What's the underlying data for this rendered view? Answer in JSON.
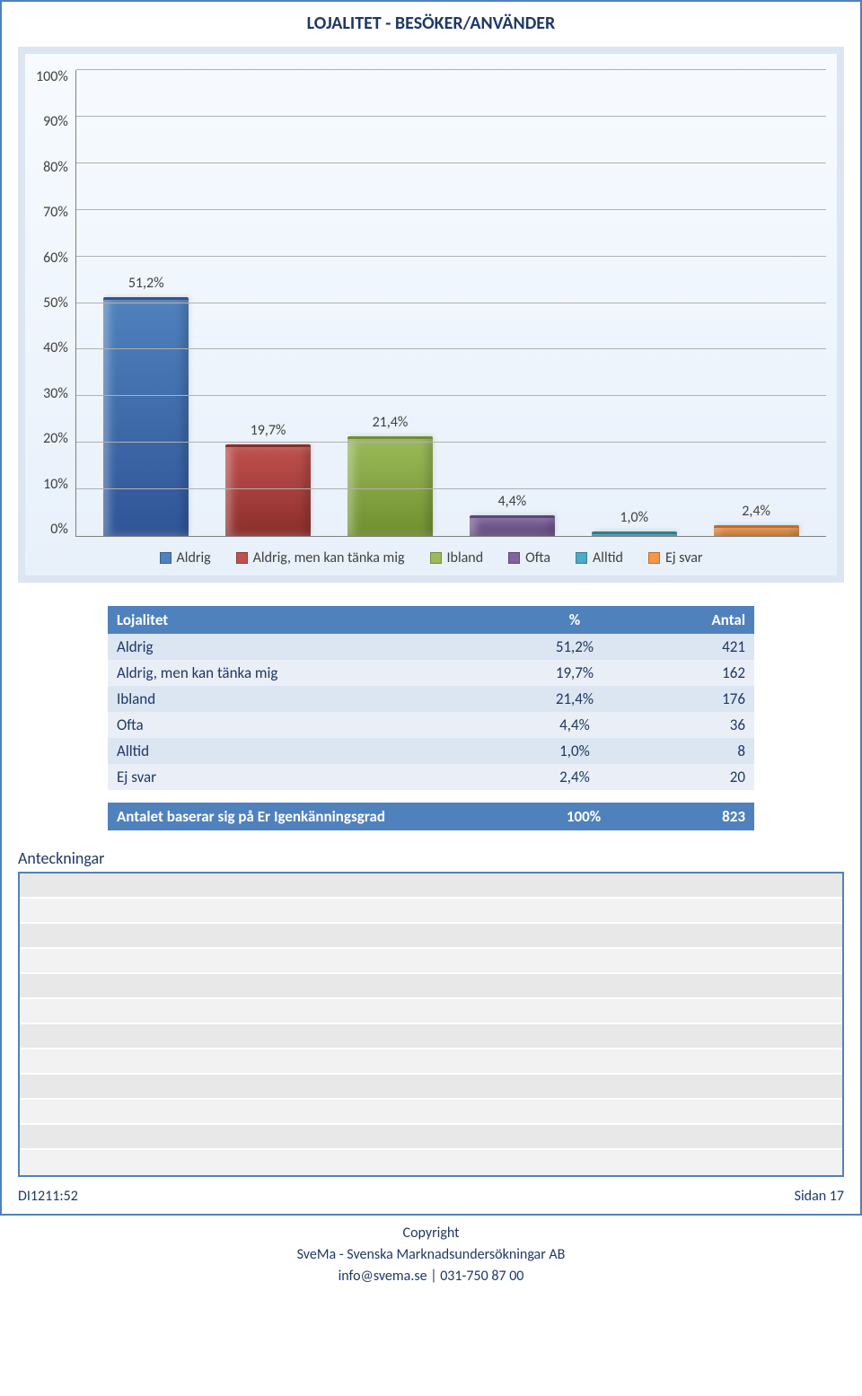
{
  "title": "LOJALITET - BESÖKER/ANVÄNDER",
  "chart": {
    "type": "bar",
    "ylim": [
      0,
      100
    ],
    "ytick_step": 10,
    "yticks": [
      "100%",
      "90%",
      "80%",
      "70%",
      "60%",
      "50%",
      "40%",
      "30%",
      "20%",
      "10%",
      "0%"
    ],
    "gridline_color": "#b0b0b0",
    "axis_color": "#808080",
    "background_gradient": [
      "#f7fbff",
      "#e8f0fa"
    ],
    "border_color": "#dce6f2",
    "bar_width": 0.7,
    "series": [
      {
        "name": "Aldrig",
        "value": 51.2,
        "label": "51,2%",
        "color": "#4f81bd",
        "dark": "#2f5597"
      },
      {
        "name": "Aldrig, men kan tänka mig",
        "value": 19.7,
        "label": "19,7%",
        "color": "#c0504d",
        "dark": "#8b2e2b"
      },
      {
        "name": "Ibland",
        "value": 21.4,
        "label": "21,4%",
        "color": "#9bbb59",
        "dark": "#6f8f2f"
      },
      {
        "name": "Ofta",
        "value": 4.4,
        "label": "4,4%",
        "color": "#8064a2",
        "dark": "#5c4778"
      },
      {
        "name": "Alltid",
        "value": 1.0,
        "label": "1,0%",
        "color": "#4bacc6",
        "dark": "#2e7e93"
      },
      {
        "name": "Ej svar",
        "value": 2.4,
        "label": "2,4%",
        "color": "#f79646",
        "dark": "#c46c1f"
      }
    ],
    "label_fontsize": 16,
    "tick_fontsize": 16,
    "text_color": "#404040"
  },
  "table": {
    "header": {
      "name": "Lojalitet",
      "pct": "%",
      "count": "Antal"
    },
    "header_bg": "#4f81bd",
    "header_fg": "#ffffff",
    "row_bg_odd": "#dce6f2",
    "row_bg_even": "#eaeff7",
    "text_color": "#1f3864",
    "rows": [
      {
        "name": "Aldrig",
        "pct": "51,2%",
        "count": "421"
      },
      {
        "name": "Aldrig, men kan tänka mig",
        "pct": "19,7%",
        "count": "162"
      },
      {
        "name": "Ibland",
        "pct": "21,4%",
        "count": "176"
      },
      {
        "name": "Ofta",
        "pct": "4,4%",
        "count": "36"
      },
      {
        "name": "Alltid",
        "pct": "1,0%",
        "count": "8"
      },
      {
        "name": "Ej svar",
        "pct": "2,4%",
        "count": "20"
      }
    ]
  },
  "summary": {
    "label": "Antalet baserar sig  på Er Igenkänningsgrad",
    "pct": "100%",
    "count": "823",
    "bg": "#4f81bd",
    "fg": "#ffffff"
  },
  "notes": {
    "label": "Anteckningar",
    "row_count": 12,
    "border_color": "#4f81bd"
  },
  "footer": {
    "left": "DI1211:52",
    "right": "Sidan 17",
    "copyright": "Copyright",
    "org": "SveMa - Svenska Marknadsundersökningar AB",
    "contact": "info@svema.se | 031-750 87 00"
  },
  "colors": {
    "page_border": "#4f81bd",
    "title_color": "#1f3864"
  }
}
